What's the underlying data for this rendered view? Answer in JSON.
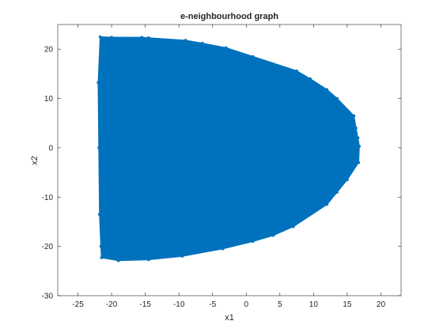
{
  "chart_data": {
    "type": "scatter",
    "title": "e-neighbourhood graph",
    "xlabel": "x1",
    "ylabel": "x2",
    "xlim": [
      -28,
      23
    ],
    "ylim": [
      -30,
      25
    ],
    "xticks": [
      -25,
      -20,
      -15,
      -10,
      -5,
      0,
      5,
      10,
      15,
      20
    ],
    "yticks": [
      -30,
      -20,
      -10,
      0,
      10,
      20
    ],
    "grid": false,
    "series_color": "#0072BD",
    "series": [
      {
        "hull_points": [
          [
            -21.7,
            22.5
          ],
          [
            -20.0,
            22.4
          ],
          [
            -15.5,
            22.4
          ],
          [
            -14.5,
            22.3
          ],
          [
            -9.0,
            21.8
          ],
          [
            -6.5,
            21.2
          ],
          [
            -3.0,
            20.3
          ],
          [
            1.0,
            18.5
          ],
          [
            7.5,
            15.6
          ],
          [
            9.5,
            14.0
          ],
          [
            12.0,
            11.8
          ],
          [
            13.5,
            10.0
          ],
          [
            16.0,
            6.5
          ],
          [
            16.3,
            4.0
          ],
          [
            16.6,
            2.0
          ],
          [
            16.8,
            0.3
          ],
          [
            16.7,
            -3.0
          ],
          [
            15.0,
            -6.5
          ],
          [
            13.5,
            -9.0
          ],
          [
            12.0,
            -11.5
          ],
          [
            7.0,
            -16.0
          ],
          [
            4.0,
            -17.8
          ],
          [
            1.0,
            -19.0
          ],
          [
            -3.5,
            -20.5
          ],
          [
            -9.5,
            -22.0
          ],
          [
            -14.5,
            -22.7
          ],
          [
            -19.0,
            -22.9
          ],
          [
            -21.5,
            -22.3
          ],
          [
            -21.6,
            -20.0
          ],
          [
            -21.8,
            -13.5
          ],
          [
            -21.9,
            0.0
          ],
          [
            -22.0,
            13.2
          ]
        ]
      }
    ]
  }
}
